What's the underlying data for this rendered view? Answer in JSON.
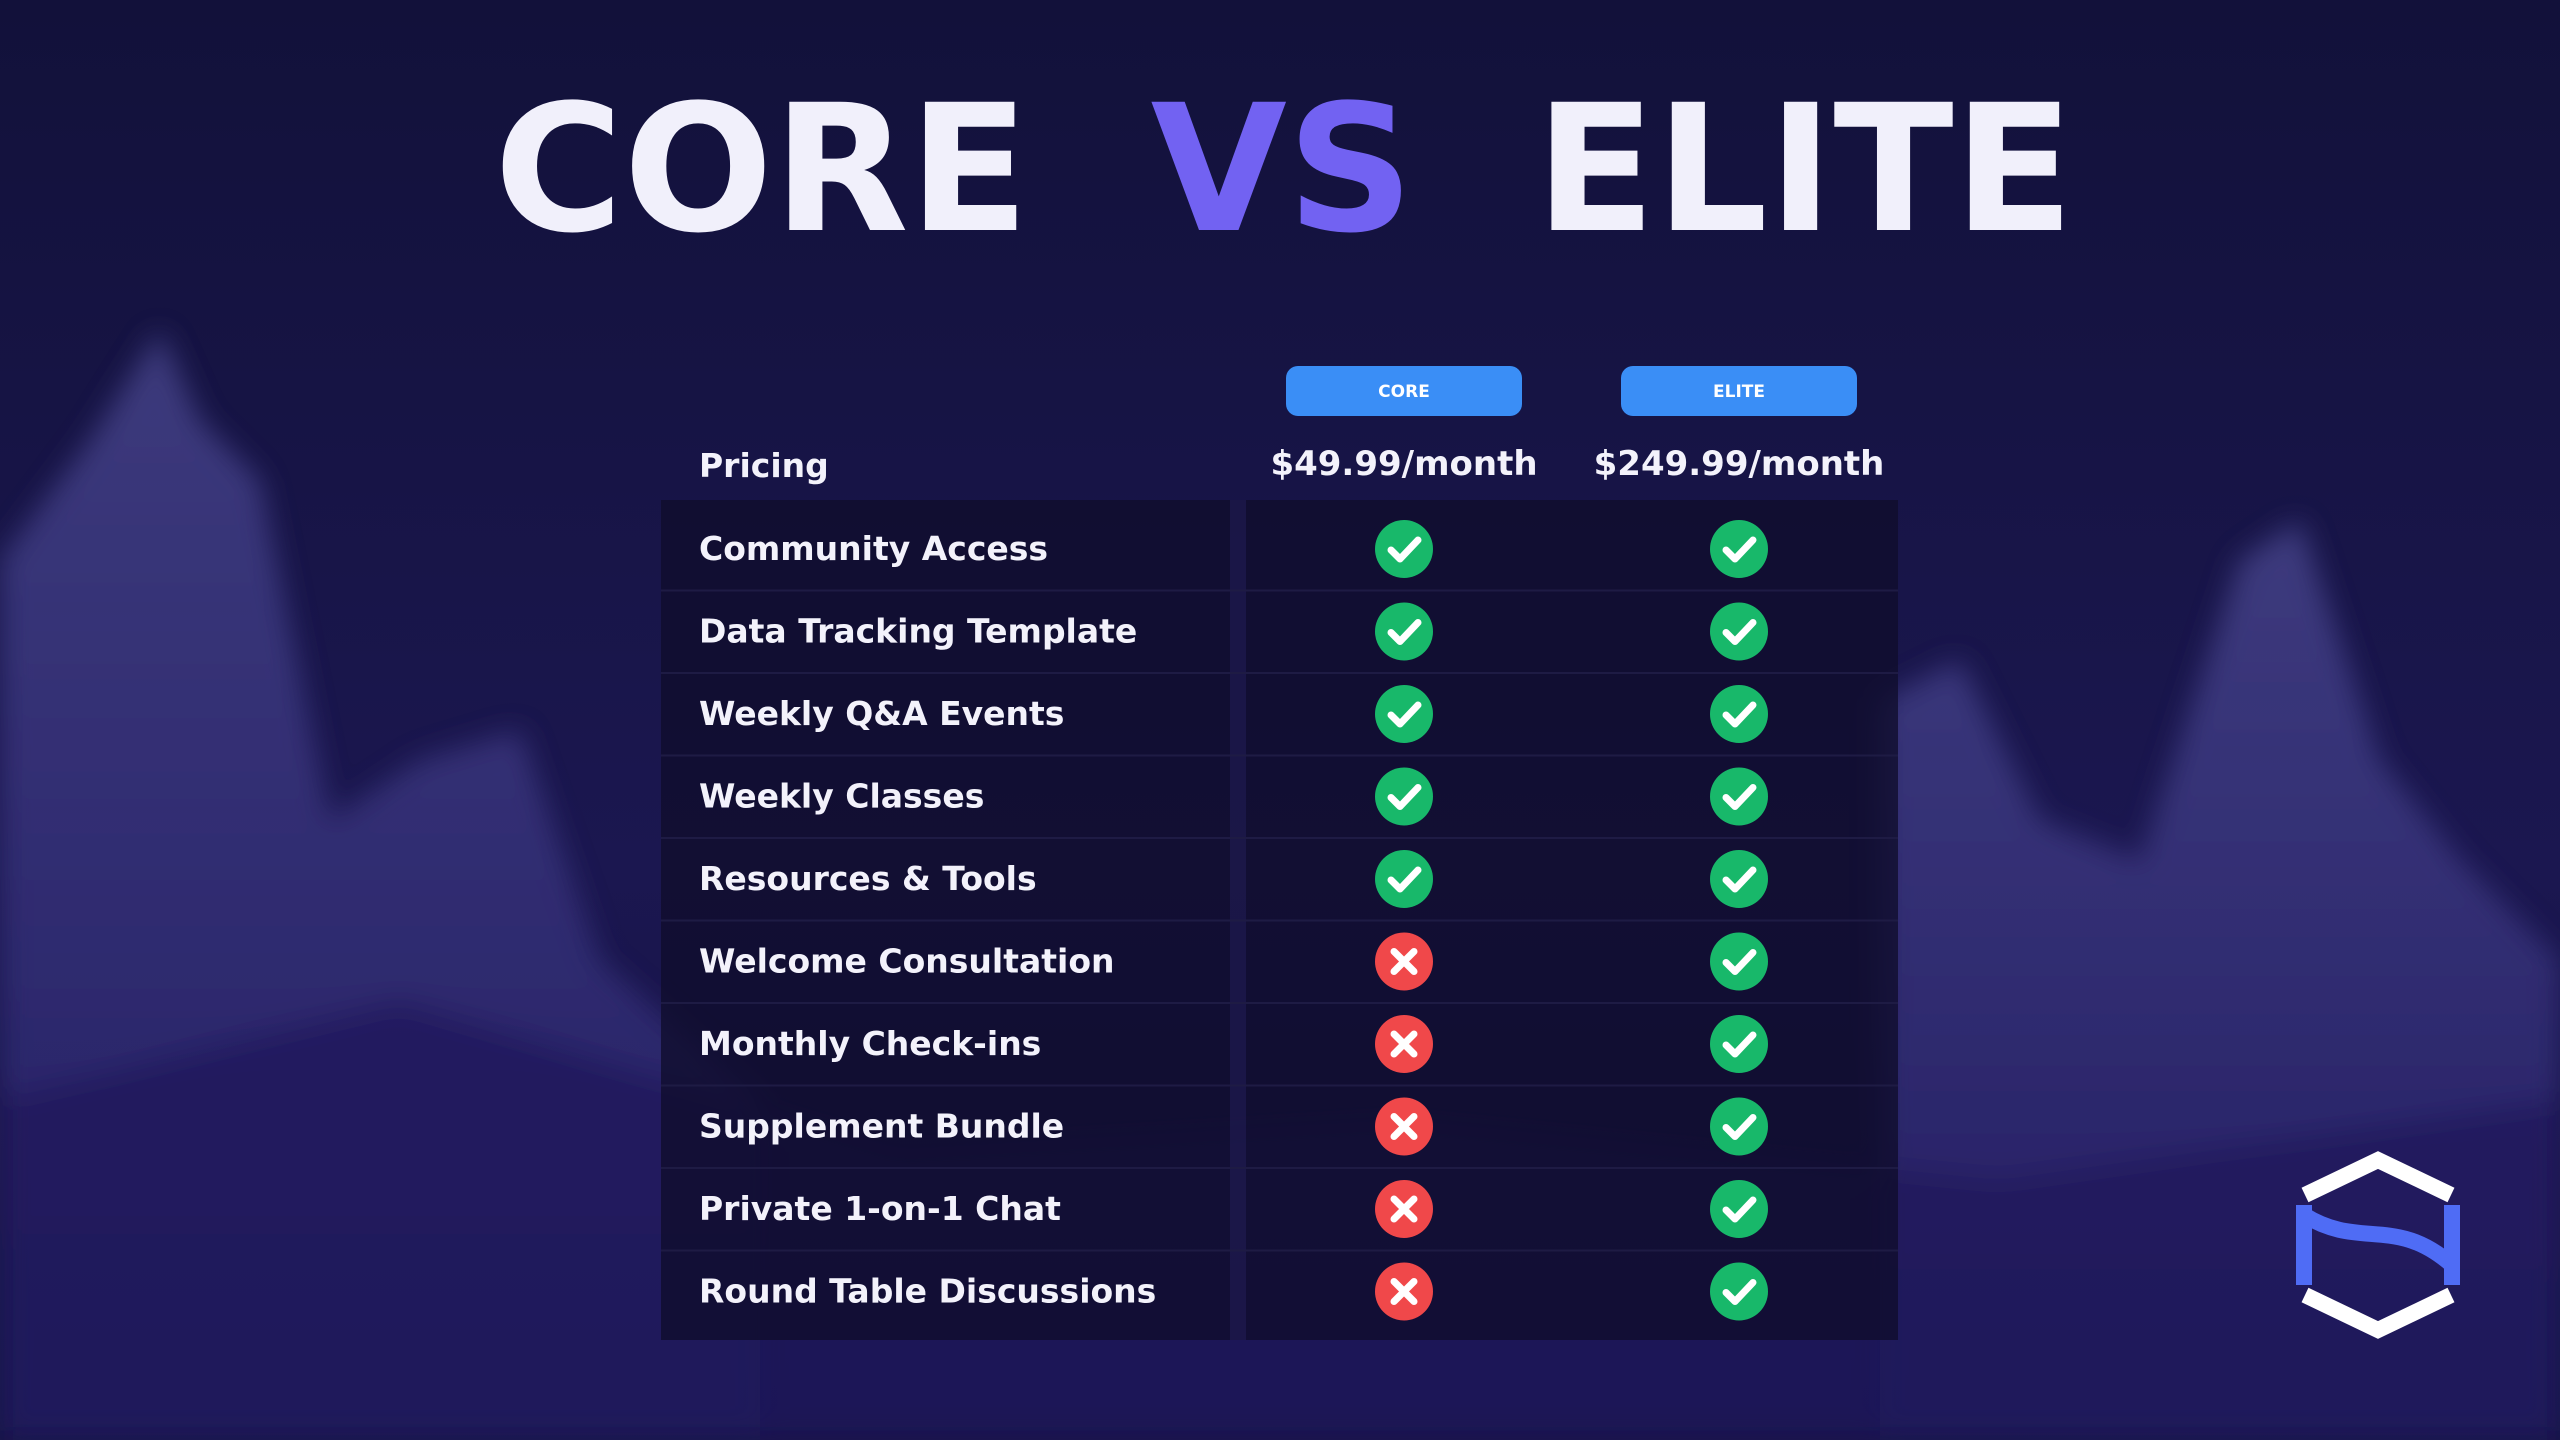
{
  "title": {
    "parts": [
      "CORE",
      "VS",
      "ELITE"
    ]
  },
  "table": {
    "columns": [
      "CORE",
      "ELITE"
    ],
    "pricing": {
      "label": "Pricing",
      "values": [
        "$49.99/month",
        "$249.99/month"
      ]
    },
    "features": [
      {
        "label": "Community Access",
        "included": [
          true,
          true
        ]
      },
      {
        "label": "Data Tracking Template",
        "included": [
          true,
          true
        ]
      },
      {
        "label": "Weekly Q&A Events",
        "included": [
          true,
          true
        ]
      },
      {
        "label": "Weekly Classes",
        "included": [
          true,
          true
        ]
      },
      {
        "label": "Resources & Tools",
        "included": [
          true,
          true
        ]
      },
      {
        "label": "Welcome Consultation",
        "included": [
          false,
          true
        ]
      },
      {
        "label": "Monthly Check-ins",
        "included": [
          false,
          true
        ]
      },
      {
        "label": "Supplement Bundle",
        "included": [
          false,
          true
        ]
      },
      {
        "label": "Private 1-on-1 Chat",
        "included": [
          false,
          true
        ]
      },
      {
        "label": "Round Table Discussions",
        "included": [
          false,
          true
        ]
      }
    ]
  }
}
